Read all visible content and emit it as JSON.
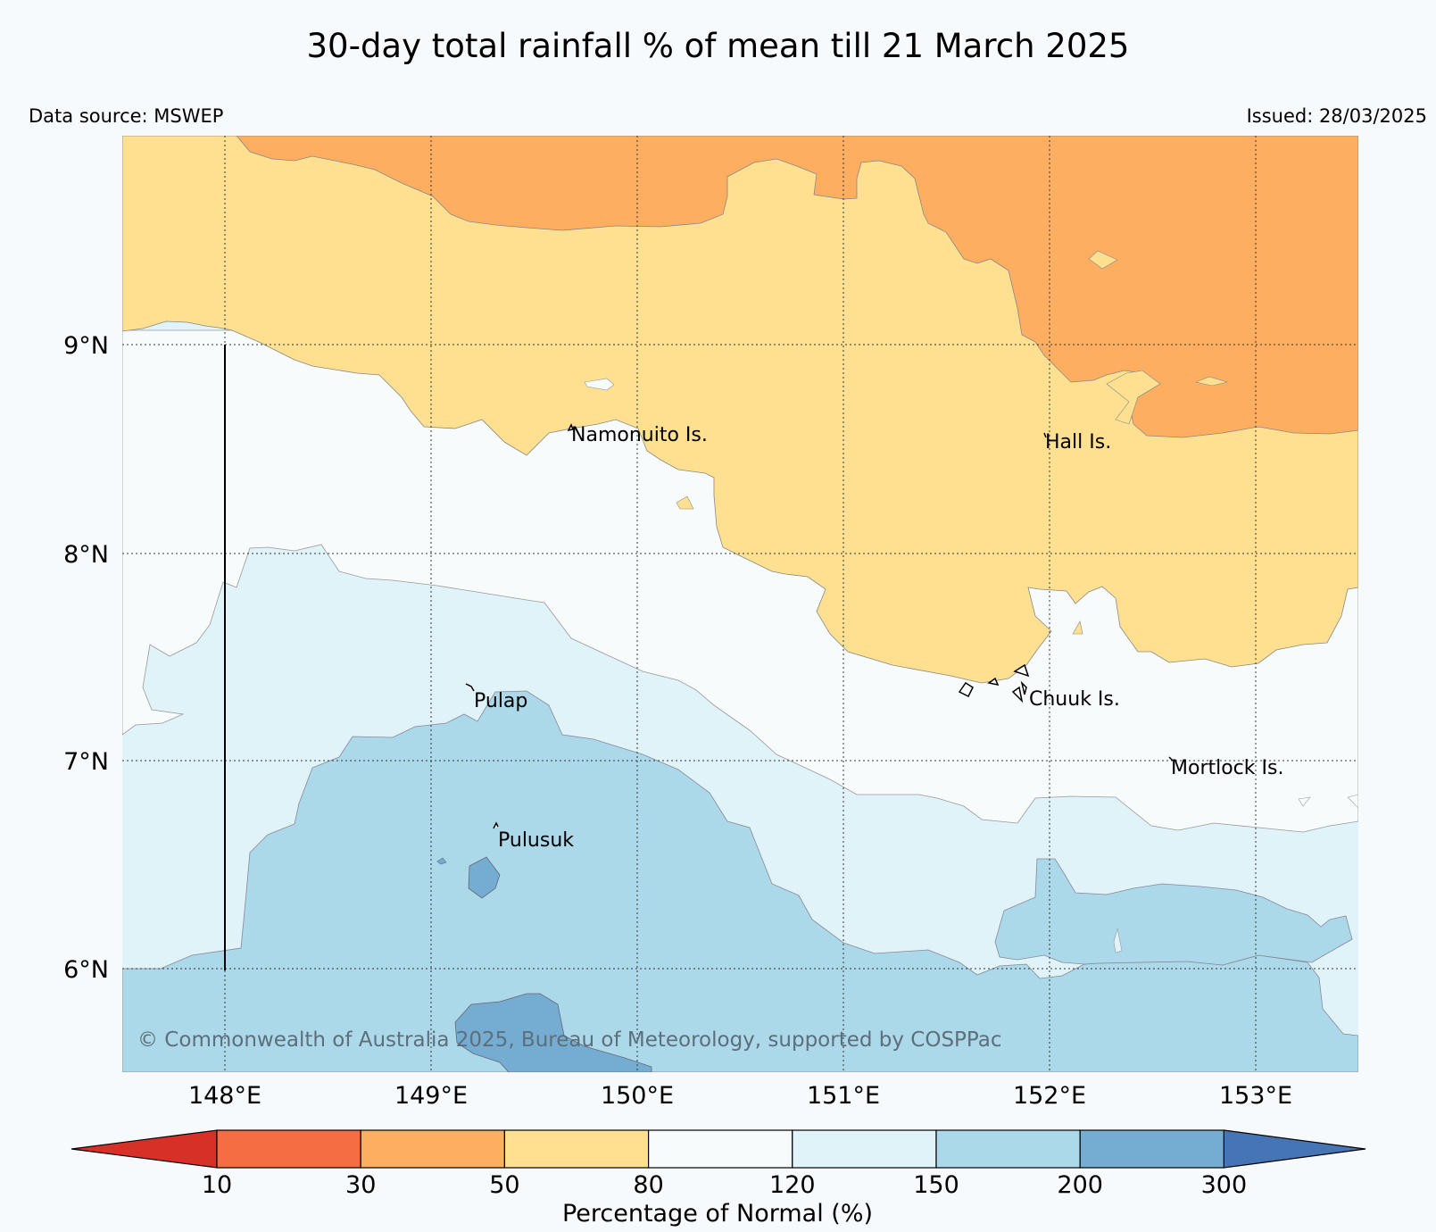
{
  "title": "30-day total rainfall % of mean till 21 March 2025",
  "data_source": "Data source: MSWEP",
  "issued": "Issued: 28/03/2025",
  "copyright": "© Commonwealth of Australia 2025, Bureau of Meteorology, supported by COSPPac",
  "lat_labels": [
    "9°N",
    "8°N",
    "7°N",
    "6°N"
  ],
  "lon_labels": [
    "148°E",
    "149°E",
    "150°E",
    "151°E",
    "152°E",
    "153°E"
  ],
  "places": {
    "namonuito": "Namonuito Is.",
    "hall": "Hall Is.",
    "pulap": "Pulap",
    "chuuk": "Chuuk Is.",
    "mortlock": "Mortlock Is.",
    "pulusuk": "Pulusuk"
  },
  "legend": {
    "title": "Percentage of Normal (%)",
    "ticks": [
      "10",
      "30",
      "50",
      "80",
      "120",
      "150",
      "200",
      "300"
    ],
    "colors": [
      "#d73027",
      "#f46d43",
      "#fdae61",
      "#fee090",
      "#f7fbfc",
      "#e0f3f8",
      "#abd9e9",
      "#74add1",
      "#4575b4"
    ]
  }
}
